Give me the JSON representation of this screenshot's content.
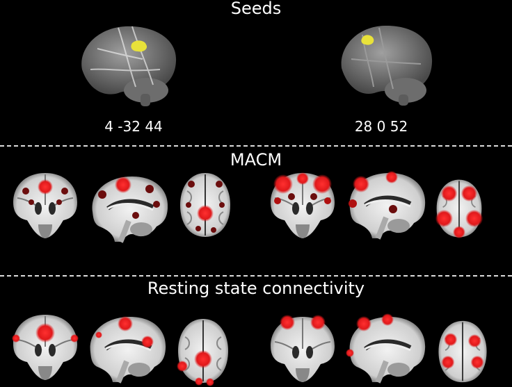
{
  "sections": {
    "seeds": {
      "title": "Seeds"
    },
    "macm": {
      "title": "MACM"
    },
    "rs": {
      "title": "Resting state connectivity"
    }
  },
  "seeds": [
    {
      "coords": "4 -32 44",
      "blob_color": "#e8e23a"
    },
    {
      "coords": "28 0 52",
      "blob_color": "#e8e23a"
    }
  ],
  "colors": {
    "background": "#000000",
    "brain_gray": "#7d7d7d",
    "white_matter": "#e6e6e6",
    "activation": "#e0191b",
    "activation_dark": "#6b0d0d",
    "divider": "#dddddd"
  }
}
